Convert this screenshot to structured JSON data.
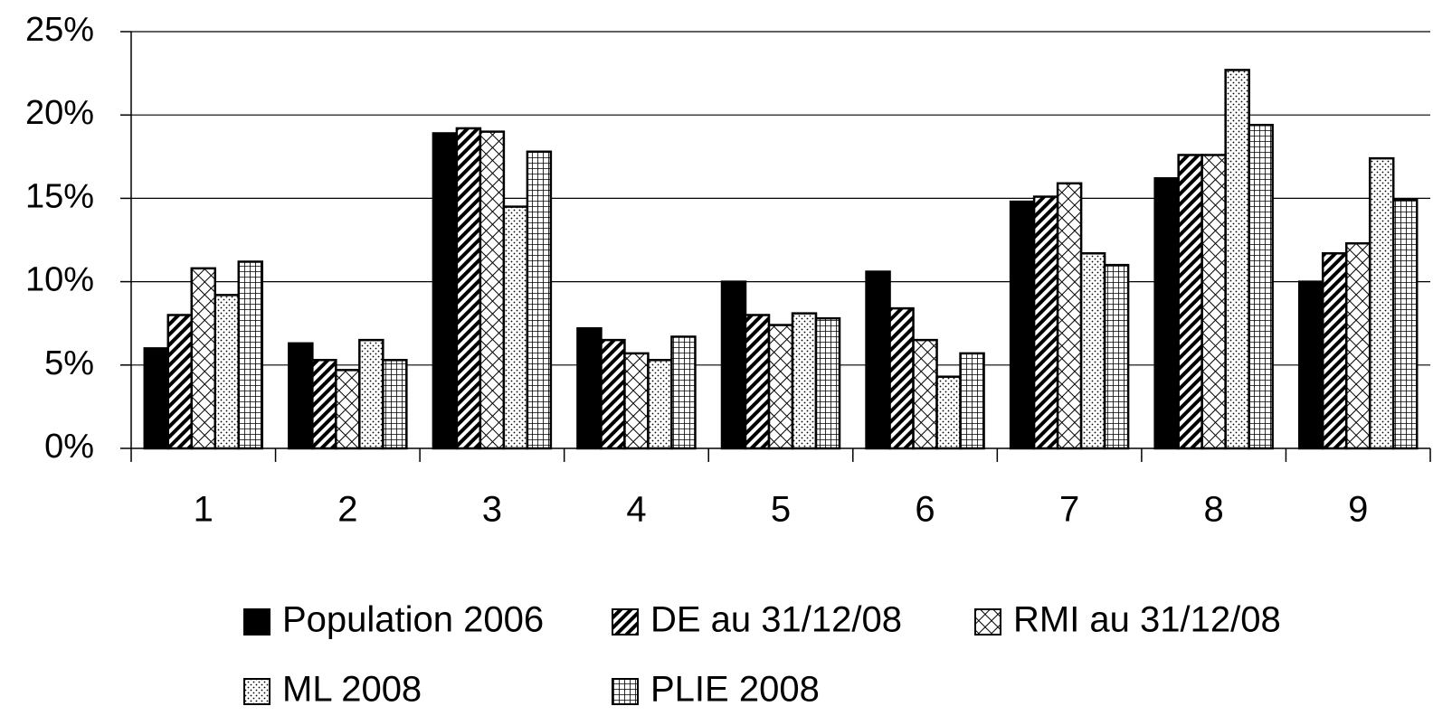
{
  "chart_data": {
    "type": "bar",
    "categories": [
      "1",
      "2",
      "3",
      "4",
      "5",
      "6",
      "7",
      "8",
      "9"
    ],
    "series": [
      {
        "name": "Population 2006",
        "color": "#000000",
        "pattern": "solid",
        "values": [
          6.0,
          6.3,
          18.9,
          7.2,
          10.0,
          10.6,
          14.8,
          16.2,
          10.0
        ]
      },
      {
        "name": "DE au 31/12/08",
        "color": "#000000",
        "pattern": "diagonal",
        "values": [
          8.0,
          5.3,
          19.2,
          6.5,
          8.0,
          8.4,
          15.1,
          17.6,
          11.7
        ]
      },
      {
        "name": "RMI au 31/12/08",
        "color": "#000000",
        "pattern": "crosshatch",
        "values": [
          10.8,
          4.7,
          19.0,
          5.7,
          7.4,
          6.5,
          15.9,
          17.6,
          12.3
        ]
      },
      {
        "name": "ML 2008",
        "color": "#000000",
        "pattern": "dots",
        "values": [
          9.2,
          6.5,
          14.5,
          5.3,
          8.1,
          4.3,
          11.7,
          22.7,
          17.4
        ]
      },
      {
        "name": "PLIE 2008",
        "color": "#000000",
        "pattern": "grid",
        "values": [
          11.2,
          5.3,
          17.8,
          6.7,
          7.8,
          5.7,
          11.0,
          19.4,
          14.9
        ]
      }
    ],
    "ylim": [
      0,
      25
    ],
    "yticks": [
      {
        "value": 0,
        "label": "0%"
      },
      {
        "value": 5,
        "label": "5%"
      },
      {
        "value": 10,
        "label": "10%"
      },
      {
        "value": 15,
        "label": "15%"
      },
      {
        "value": 20,
        "label": "20%"
      },
      {
        "value": 25,
        "label": "25%"
      }
    ],
    "grid": true,
    "legend": "bottom"
  }
}
